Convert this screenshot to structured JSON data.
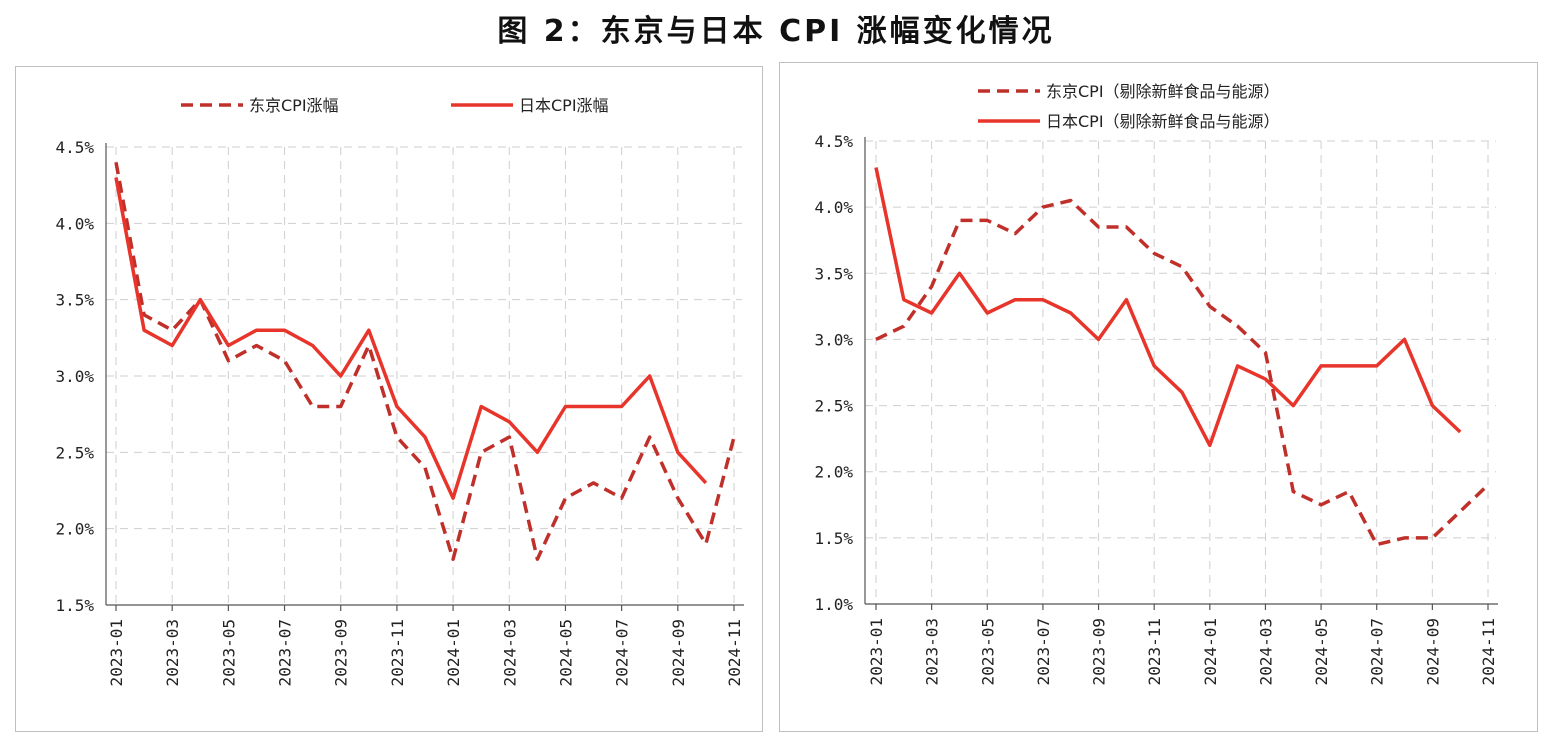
{
  "figure_title": "图 2：东京与日本 CPI 涨幅变化情况",
  "colors": {
    "tokyo": "#C0302B",
    "japan": "#E8352B"
  },
  "chart_data": [
    {
      "type": "line",
      "title": "",
      "ylim": [
        1.5,
        4.5
      ],
      "yticks": [
        "1.5%",
        "2.0%",
        "2.5%",
        "3.0%",
        "3.5%",
        "4.0%",
        "4.5%"
      ],
      "ytick_values": [
        1.5,
        2.0,
        2.5,
        3.0,
        3.5,
        4.0,
        4.5
      ],
      "x": [
        "2023-01",
        "2023-02",
        "2023-03",
        "2023-04",
        "2023-05",
        "2023-06",
        "2023-07",
        "2023-08",
        "2023-09",
        "2023-10",
        "2023-11",
        "2023-12",
        "2024-01",
        "2024-02",
        "2024-03",
        "2024-04",
        "2024-05",
        "2024-06",
        "2024-07",
        "2024-08",
        "2024-09",
        "2024-10",
        "2024-11"
      ],
      "xtick_labels": [
        "2023-01",
        "2023-03",
        "2023-05",
        "2023-07",
        "2023-09",
        "2023-11",
        "2024-01",
        "2024-03",
        "2024-05",
        "2024-07",
        "2024-09",
        "2024-11"
      ],
      "legend_position": "top",
      "series": [
        {
          "name": "东京CPI涨幅",
          "style": "dashed",
          "color": "#C0302B",
          "values": [
            4.4,
            3.4,
            3.3,
            3.5,
            3.1,
            3.2,
            3.1,
            2.8,
            2.8,
            3.2,
            2.6,
            2.4,
            1.8,
            2.5,
            2.6,
            1.8,
            2.2,
            2.3,
            2.2,
            2.6,
            2.2,
            1.9,
            2.6
          ]
        },
        {
          "name": "日本CPI涨幅",
          "style": "solid",
          "color": "#E8352B",
          "values": [
            4.3,
            3.3,
            3.2,
            3.5,
            3.2,
            3.3,
            3.3,
            3.2,
            3.0,
            3.3,
            2.8,
            2.6,
            2.2,
            2.8,
            2.7,
            2.5,
            2.8,
            2.8,
            2.8,
            3.0,
            2.5,
            2.3,
            null
          ]
        }
      ]
    },
    {
      "type": "line",
      "title": "",
      "ylim": [
        1.0,
        4.5
      ],
      "yticks": [
        "1.0%",
        "1.5%",
        "2.0%",
        "2.5%",
        "3.0%",
        "3.5%",
        "4.0%",
        "4.5%"
      ],
      "ytick_values": [
        1.0,
        1.5,
        2.0,
        2.5,
        3.0,
        3.5,
        4.0,
        4.5
      ],
      "x": [
        "2023-01",
        "2023-02",
        "2023-03",
        "2023-04",
        "2023-05",
        "2023-06",
        "2023-07",
        "2023-08",
        "2023-09",
        "2023-10",
        "2023-11",
        "2023-12",
        "2024-01",
        "2024-02",
        "2024-03",
        "2024-04",
        "2024-05",
        "2024-06",
        "2024-07",
        "2024-08",
        "2024-09",
        "2024-10",
        "2024-11"
      ],
      "xtick_labels": [
        "2023-01",
        "2023-03",
        "2023-05",
        "2023-07",
        "2023-09",
        "2023-11",
        "2024-01",
        "2024-03",
        "2024-05",
        "2024-07",
        "2024-09",
        "2024-11"
      ],
      "legend_position": "top",
      "series": [
        {
          "name": "东京CPI（剔除新鲜食品与能源）",
          "style": "dashed",
          "color": "#C0302B",
          "values": [
            3.0,
            3.1,
            3.4,
            3.9,
            3.9,
            3.8,
            4.0,
            4.05,
            3.85,
            3.85,
            3.65,
            3.55,
            3.25,
            3.1,
            2.9,
            1.85,
            1.75,
            1.85,
            1.45,
            1.5,
            1.5,
            1.7,
            1.9
          ]
        },
        {
          "name": "日本CPI（剔除新鲜食品与能源）",
          "style": "solid",
          "color": "#E8352B",
          "values": [
            4.3,
            3.3,
            3.2,
            3.5,
            3.2,
            3.3,
            3.3,
            3.2,
            3.0,
            3.3,
            2.8,
            2.6,
            2.2,
            2.8,
            2.7,
            2.5,
            2.8,
            2.8,
            2.8,
            3.0,
            2.5,
            2.3,
            null
          ]
        }
      ]
    }
  ]
}
